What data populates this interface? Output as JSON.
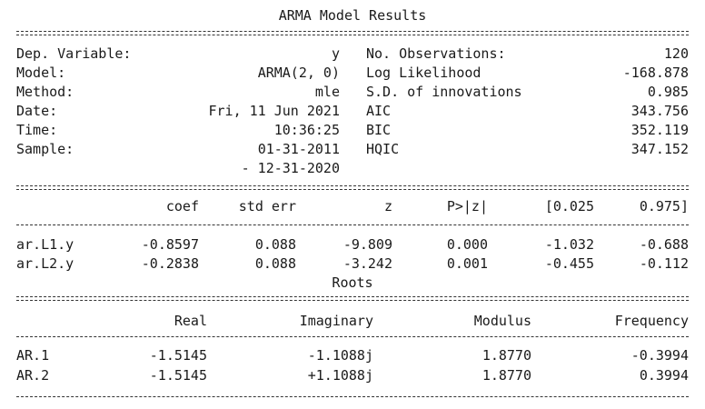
{
  "summary": {
    "title": "ARMA Model Results",
    "left": [
      {
        "label": "Dep. Variable:",
        "value": "y"
      },
      {
        "label": "Model:",
        "value": "ARMA(2, 0)"
      },
      {
        "label": "Method:",
        "value": "mle"
      },
      {
        "label": "Date:",
        "value": "Fri, 11 Jun 2021"
      },
      {
        "label": "Time:",
        "value": "10:36:25"
      },
      {
        "label": "Sample:",
        "value": "01-31-2011"
      },
      {
        "label": "",
        "value": "- 12-31-2020"
      }
    ],
    "right": [
      {
        "label": "No. Observations:",
        "value": "120"
      },
      {
        "label": "Log Likelihood",
        "value": "-168.878"
      },
      {
        "label": "S.D. of innovations",
        "value": "0.985"
      },
      {
        "label": "AIC",
        "value": "343.756"
      },
      {
        "label": "BIC",
        "value": "352.119"
      },
      {
        "label": "HQIC",
        "value": "347.152"
      }
    ]
  },
  "coef_table": {
    "headers": [
      "coef",
      "std err",
      "z",
      "P>|z|",
      "[0.025",
      "0.975]"
    ],
    "rows": [
      {
        "name": "ar.L1.y",
        "cells": [
          "-0.8597",
          "0.088",
          "-9.809",
          "0.000",
          "-1.032",
          "-0.688"
        ]
      },
      {
        "name": "ar.L2.y",
        "cells": [
          "-0.2838",
          "0.088",
          "-3.242",
          "0.001",
          "-0.455",
          "-0.112"
        ]
      }
    ]
  },
  "roots": {
    "title": "Roots",
    "headers": [
      "Real",
      "Imaginary",
      "Modulus",
      "Frequency"
    ],
    "rows": [
      {
        "name": "AR.1",
        "cells": [
          "-1.5145",
          "-1.1088j",
          "1.8770",
          "-0.3994"
        ]
      },
      {
        "name": "AR.2",
        "cells": [
          "-1.5145",
          "+1.1088j",
          "1.8770",
          "0.3994"
        ]
      }
    ]
  }
}
